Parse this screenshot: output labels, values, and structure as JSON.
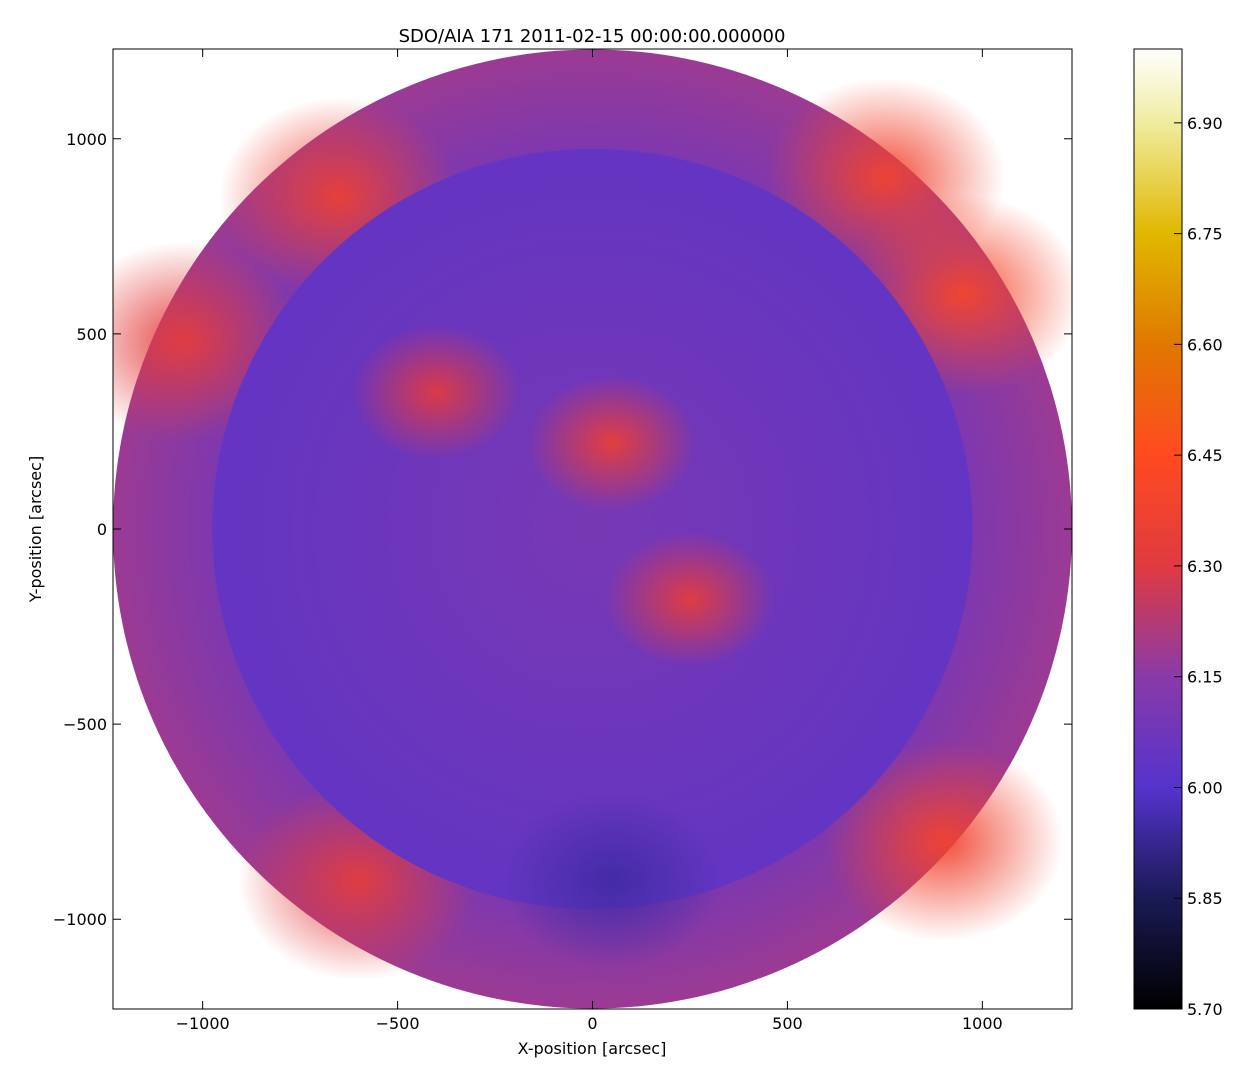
{
  "chart_data": {
    "type": "heatmap",
    "title": "SDO/AIA 171 2011-02-15 00:00:00.000000",
    "xlabel": "X-position [arcsec]",
    "ylabel": "Y-position [arcsec]",
    "xlim": [
      -1230,
      1230
    ],
    "ylim": [
      -1230,
      1230
    ],
    "xticks": [
      -1000,
      -500,
      0,
      500,
      1000
    ],
    "xtick_labels": [
      "−1000",
      "−500",
      "0",
      "500",
      "1000"
    ],
    "yticks": [
      -1000,
      -500,
      0,
      500,
      1000
    ],
    "ytick_labels": [
      "−1000",
      "−500",
      "0",
      "500",
      "1000"
    ],
    "image_circle_radius": 1230,
    "solar_disk_radius": 975,
    "colorbar": {
      "min": 5.7,
      "max": 7.0,
      "ticks": [
        5.7,
        5.85,
        6.0,
        6.15,
        6.3,
        6.45,
        6.6,
        6.75,
        6.9
      ],
      "tick_labels": [
        "5.70",
        "5.85",
        "6.00",
        "6.15",
        "6.30",
        "6.45",
        "6.60",
        "6.75",
        "6.90"
      ],
      "colormap": [
        [
          5.7,
          "#000000"
        ],
        [
          5.85,
          "#1a1a55"
        ],
        [
          6.0,
          "#5533cc"
        ],
        [
          6.15,
          "#8a3aa8"
        ],
        [
          6.3,
          "#e03a40"
        ],
        [
          6.45,
          "#ff4a20"
        ],
        [
          6.6,
          "#e07800"
        ],
        [
          6.75,
          "#e0b800"
        ],
        [
          6.9,
          "#f0eca0"
        ],
        [
          7.0,
          "#ffffff"
        ]
      ]
    },
    "regions": [
      {
        "x": 0,
        "y": 0,
        "value": 6.08
      },
      {
        "x": -650,
        "y": 850,
        "value": 6.36
      },
      {
        "x": 750,
        "y": 900,
        "value": 6.38
      },
      {
        "x": 950,
        "y": 600,
        "value": 6.4
      },
      {
        "x": -1050,
        "y": 480,
        "value": 6.32
      },
      {
        "x": -600,
        "y": -900,
        "value": 6.32
      },
      {
        "x": 900,
        "y": -800,
        "value": 6.38
      },
      {
        "x": -400,
        "y": 350,
        "value": 6.3
      },
      {
        "x": 50,
        "y": 220,
        "value": 6.34
      },
      {
        "x": 250,
        "y": -180,
        "value": 6.32
      },
      {
        "x": 50,
        "y": -900,
        "value": 5.95
      }
    ]
  }
}
